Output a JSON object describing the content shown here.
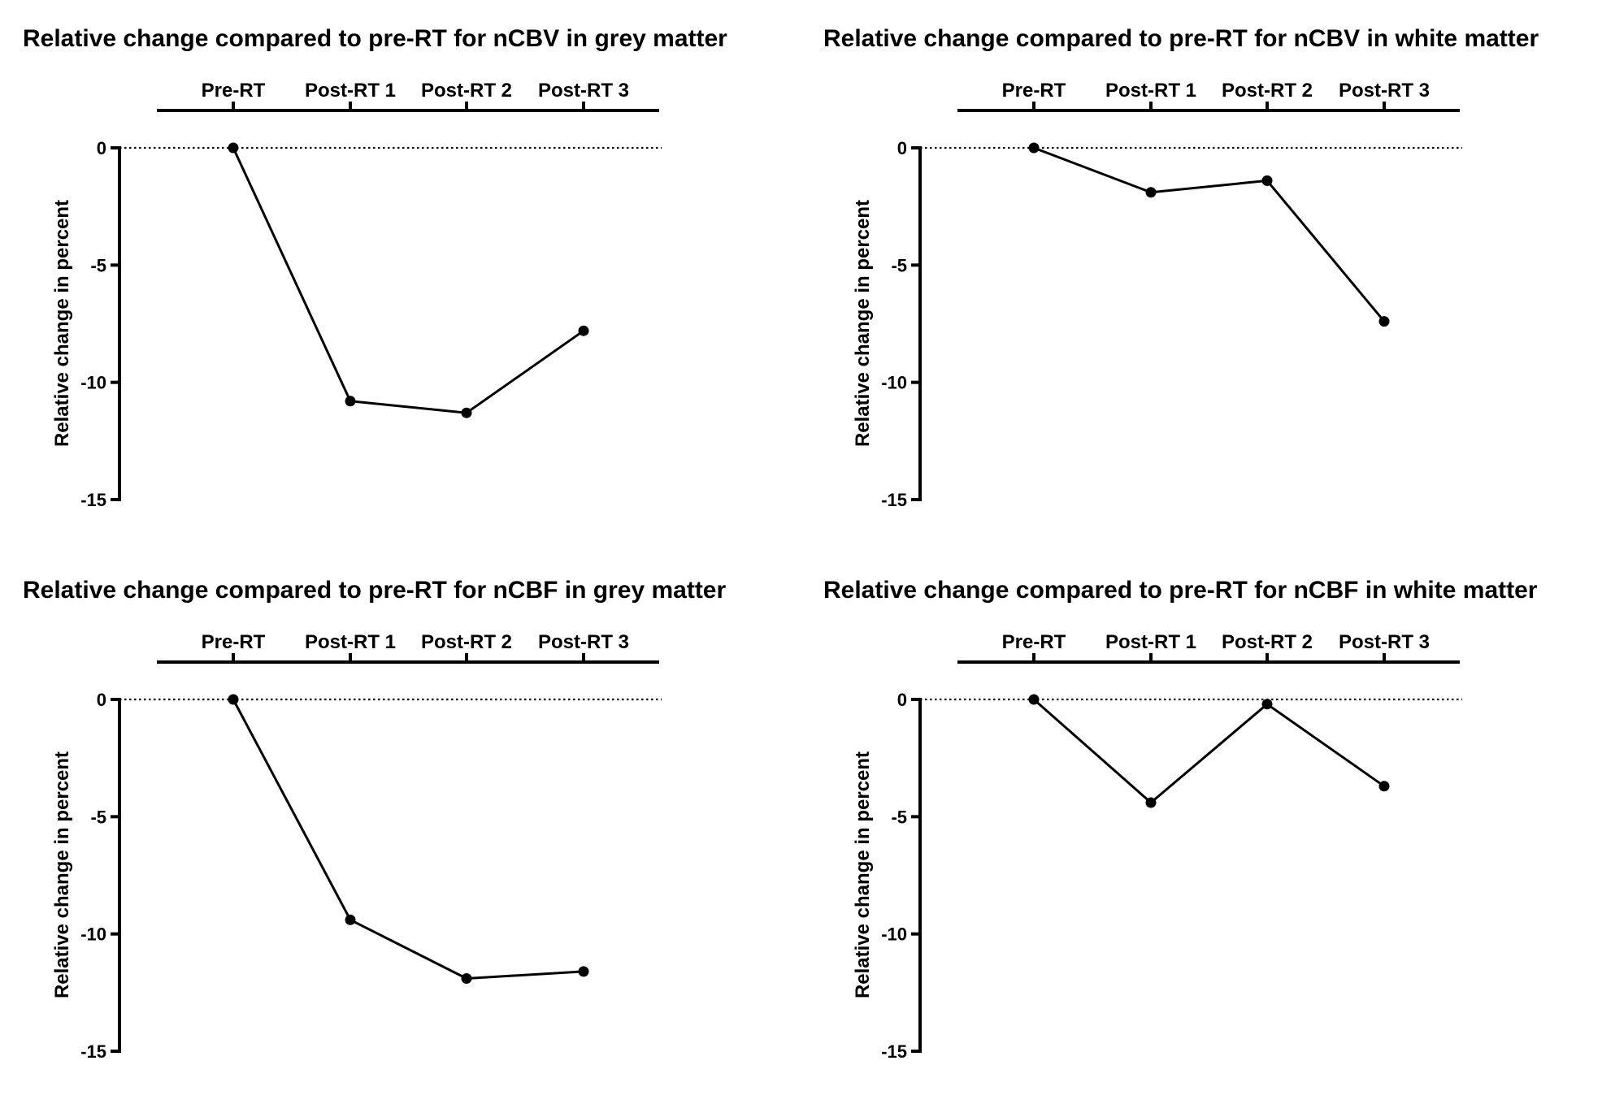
{
  "chart_data": [
    {
      "type": "line",
      "title": "Relative change compared to pre-RT for nCBV in grey matter",
      "categories": [
        "Pre-RT",
        "Post-RT 1",
        "Post-RT 2",
        "Post-RT 3"
      ],
      "values": [
        0,
        -10.8,
        -11.3,
        -7.8
      ],
      "ylabel": "Relative change in percent",
      "ylim": [
        -15,
        0
      ],
      "yticks": [
        "0",
        "-5",
        "-10",
        "-15"
      ],
      "reference_line": 0,
      "x_axis_position": "top",
      "grid": false,
      "color": "#000000"
    },
    {
      "type": "line",
      "title": "Relative change compared to pre-RT for nCBV in white matter",
      "categories": [
        "Pre-RT",
        "Post-RT 1",
        "Post-RT 2",
        "Post-RT 3"
      ],
      "values": [
        0,
        -1.9,
        -1.4,
        -7.4
      ],
      "ylabel": "Relative change in percent",
      "ylim": [
        -15,
        0
      ],
      "yticks": [
        "0",
        "-5",
        "-10",
        "-15"
      ],
      "reference_line": 0,
      "x_axis_position": "top",
      "grid": false,
      "color": "#000000"
    },
    {
      "type": "line",
      "title": "Relative change compared to pre-RT for nCBF in grey matter",
      "categories": [
        "Pre-RT",
        "Post-RT 1",
        "Post-RT 2",
        "Post-RT 3"
      ],
      "values": [
        0,
        -9.4,
        -11.9,
        -11.6
      ],
      "ylabel": "Relative change in percent",
      "ylim": [
        -15,
        0
      ],
      "yticks": [
        "0",
        "-5",
        "-10",
        "-15"
      ],
      "reference_line": 0,
      "x_axis_position": "top",
      "grid": false,
      "color": "#000000"
    },
    {
      "type": "line",
      "title": "Relative change compared to pre-RT for nCBF in white matter",
      "categories": [
        "Pre-RT",
        "Post-RT 1",
        "Post-RT 2",
        "Post-RT 3"
      ],
      "values": [
        0,
        -4.4,
        -0.2,
        -3.7
      ],
      "ylabel": "Relative change in percent",
      "ylim": [
        -15,
        0
      ],
      "yticks": [
        "0",
        "-5",
        "-10",
        "-15"
      ],
      "reference_line": 0,
      "x_axis_position": "top",
      "grid": false,
      "color": "#000000"
    }
  ]
}
